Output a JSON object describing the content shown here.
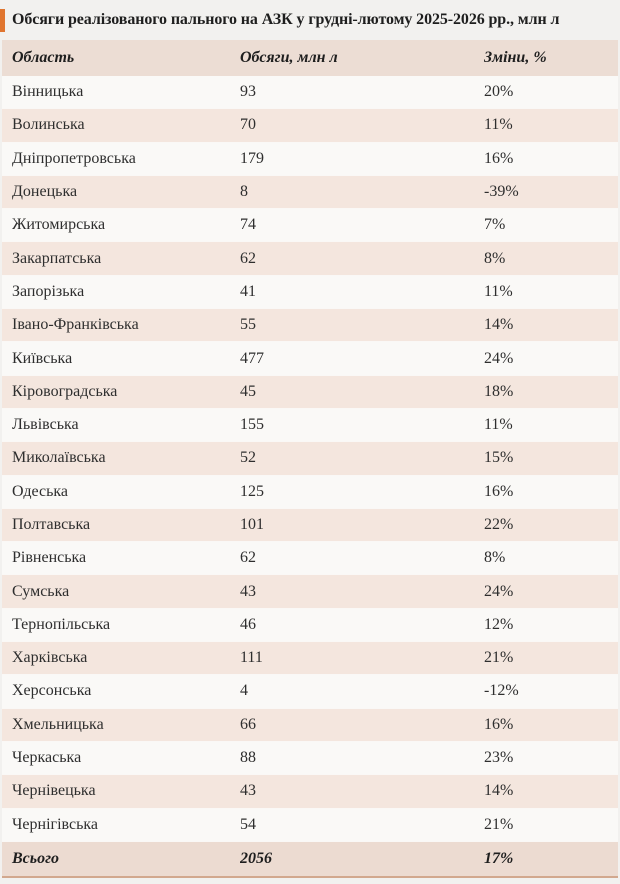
{
  "title": "Обсяги реалізованого пального на АЗК у грудні-лютому 2025-2026 рр., млн л",
  "table": {
    "headers": [
      "Область",
      "Обсяги, млн л",
      "Зміни, %"
    ],
    "rows": [
      [
        "Вінницька",
        "93",
        "20%"
      ],
      [
        "Волинська",
        "70",
        "11%"
      ],
      [
        "Дніпропетровська",
        "179",
        "16%"
      ],
      [
        "Донецька",
        "8",
        "-39%"
      ],
      [
        "Житомирська",
        "74",
        "7%"
      ],
      [
        "Закарпатська",
        "62",
        "8%"
      ],
      [
        "Запорізька",
        "41",
        "11%"
      ],
      [
        "Івано-Франківська",
        "55",
        "14%"
      ],
      [
        "Київська",
        "477",
        "24%"
      ],
      [
        "Кіровоградська",
        "45",
        "18%"
      ],
      [
        "Львівська",
        "155",
        "11%"
      ],
      [
        "Миколаївська",
        "52",
        "15%"
      ],
      [
        "Одеська",
        "125",
        "16%"
      ],
      [
        "Полтавська",
        "101",
        "22%"
      ],
      [
        "Рівненська",
        "62",
        "8%"
      ],
      [
        "Сумська",
        "43",
        "24%"
      ],
      [
        "Тернопільська",
        "46",
        "12%"
      ],
      [
        "Харківська",
        "111",
        "21%"
      ],
      [
        "Херсонська",
        "4",
        "-12%"
      ],
      [
        "Хмельницька",
        "66",
        "16%"
      ],
      [
        "Черкаська",
        "88",
        "23%"
      ],
      [
        "Чернівецька",
        "43",
        "14%"
      ],
      [
        "Чернігівська",
        "54",
        "21%"
      ]
    ],
    "total": [
      "Всього",
      "2056",
      "17%"
    ]
  },
  "colors": {
    "page_bg": "#f2f1ef",
    "accent": "#e0752f",
    "header_bg": "#ecddd4",
    "row_odd_bg": "#faf9f7",
    "row_even_bg": "#f4e6de",
    "total_bg": "#ecdbd1",
    "bottom_border": "#d2a88e",
    "text": "#2e2e2e"
  },
  "chart_data": {
    "type": "table",
    "title": "Обсяги реалізованого пального на АЗК у грудні-лютому 2025-2026 рр., млн л",
    "columns": [
      "Область",
      "Обсяги, млн л",
      "Зміни, %"
    ],
    "rows": [
      {
        "region": "Вінницька",
        "volume_mln_l": 93,
        "change_pct": 20
      },
      {
        "region": "Волинська",
        "volume_mln_l": 70,
        "change_pct": 11
      },
      {
        "region": "Дніпропетровська",
        "volume_mln_l": 179,
        "change_pct": 16
      },
      {
        "region": "Донецька",
        "volume_mln_l": 8,
        "change_pct": -39
      },
      {
        "region": "Житомирська",
        "volume_mln_l": 74,
        "change_pct": 7
      },
      {
        "region": "Закарпатська",
        "volume_mln_l": 62,
        "change_pct": 8
      },
      {
        "region": "Запорізька",
        "volume_mln_l": 41,
        "change_pct": 11
      },
      {
        "region": "Івано-Франківська",
        "volume_mln_l": 55,
        "change_pct": 14
      },
      {
        "region": "Київська",
        "volume_mln_l": 477,
        "change_pct": 24
      },
      {
        "region": "Кіровоградська",
        "volume_mln_l": 45,
        "change_pct": 18
      },
      {
        "region": "Львівська",
        "volume_mln_l": 155,
        "change_pct": 11
      },
      {
        "region": "Миколаївська",
        "volume_mln_l": 52,
        "change_pct": 15
      },
      {
        "region": "Одеська",
        "volume_mln_l": 125,
        "change_pct": 16
      },
      {
        "region": "Полтавська",
        "volume_mln_l": 101,
        "change_pct": 22
      },
      {
        "region": "Рівненська",
        "volume_mln_l": 62,
        "change_pct": 8
      },
      {
        "region": "Сумська",
        "volume_mln_l": 43,
        "change_pct": 24
      },
      {
        "region": "Тернопільська",
        "volume_mln_l": 46,
        "change_pct": 12
      },
      {
        "region": "Харківська",
        "volume_mln_l": 111,
        "change_pct": 21
      },
      {
        "region": "Херсонська",
        "volume_mln_l": 4,
        "change_pct": -12
      },
      {
        "region": "Хмельницька",
        "volume_mln_l": 66,
        "change_pct": 16
      },
      {
        "region": "Черкаська",
        "volume_mln_l": 88,
        "change_pct": 23
      },
      {
        "region": "Чернівецька",
        "volume_mln_l": 43,
        "change_pct": 14
      },
      {
        "region": "Чернігівська",
        "volume_mln_l": 54,
        "change_pct": 21
      }
    ],
    "total": {
      "region": "Всього",
      "volume_mln_l": 2056,
      "change_pct": 17
    }
  }
}
